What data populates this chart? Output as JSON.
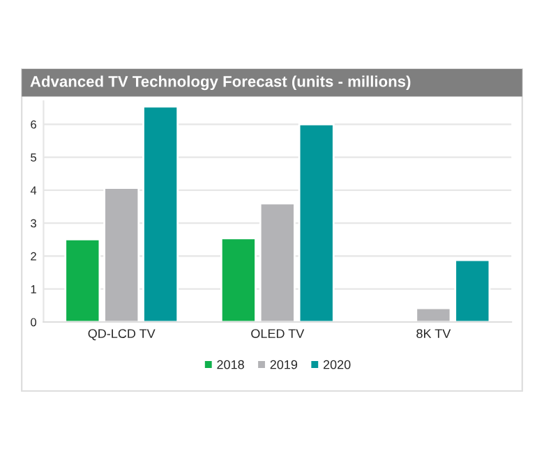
{
  "chart_data": {
    "type": "bar",
    "title": "Advanced TV Technology Forecast (units - millions)",
    "categories": [
      "QD-LCD TV",
      "OLED TV",
      "8K TV"
    ],
    "series": [
      {
        "name": "2018",
        "color": "#10b04c",
        "values": [
          2.51,
          2.54,
          null
        ]
      },
      {
        "name": "2019",
        "color": "#b3b3b6",
        "values": [
          4.07,
          3.6,
          0.42
        ]
      },
      {
        "name": "2020",
        "color": "#02979a",
        "values": [
          6.54,
          6.0,
          1.88
        ]
      }
    ],
    "ylim": [
      0,
      6.7
    ],
    "yticks": [
      0,
      1,
      2,
      3,
      4,
      5,
      6
    ],
    "grid": "y",
    "legend": "bottom"
  }
}
